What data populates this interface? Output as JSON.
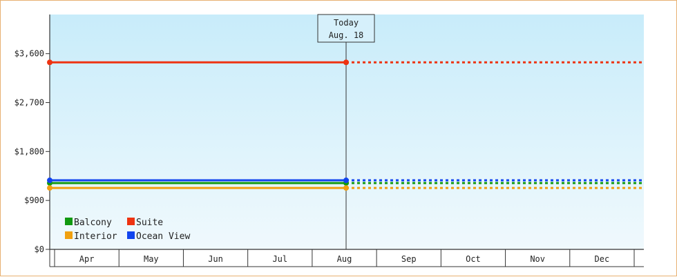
{
  "chart_data": {
    "type": "line",
    "categories": [
      "Apr",
      "May",
      "Jun",
      "Jul",
      "Aug",
      "Sep",
      "Oct",
      "Nov",
      "Dec"
    ],
    "ylim": [
      0,
      4320
    ],
    "yticks": [
      0,
      900,
      1800,
      2700,
      3600
    ],
    "ytick_labels": [
      "$0",
      "$900",
      "$1,800",
      "$2,700",
      "$3,600"
    ],
    "grid": false,
    "legend_position": "bottom-left",
    "today_marker": {
      "line1": "Today",
      "line2": "Aug. 18"
    },
    "series": [
      {
        "name": "Balcony",
        "color": "#119911",
        "value": 1220
      },
      {
        "name": "Interior",
        "color": "#f0a010",
        "value": 1130
      },
      {
        "name": "Suite",
        "color": "#ee3311",
        "value": 3440
      },
      {
        "name": "Ocean View",
        "color": "#1144ee",
        "value": 1270
      }
    ],
    "colors": {
      "background_top": "#c8ecfa",
      "background_bottom": "#f0f9fd",
      "axis": "#333333",
      "frame_border": "#e8b070"
    }
  }
}
